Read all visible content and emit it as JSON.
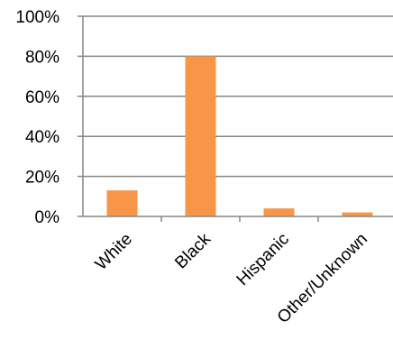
{
  "chart_data": {
    "type": "bar",
    "categories": [
      "White",
      "Black",
      "Hispanic",
      "Other/Unknown"
    ],
    "values": [
      13,
      80,
      4,
      2
    ],
    "value_unit": "%",
    "y_tick_labels": [
      "0%",
      "20%",
      "40%",
      "60%",
      "80%",
      "100%"
    ],
    "ylim": [
      0,
      100
    ],
    "grid": true,
    "legend": "none",
    "bar_color": "#F79646",
    "grid_color": "#868686",
    "axis_color": "#868686"
  }
}
